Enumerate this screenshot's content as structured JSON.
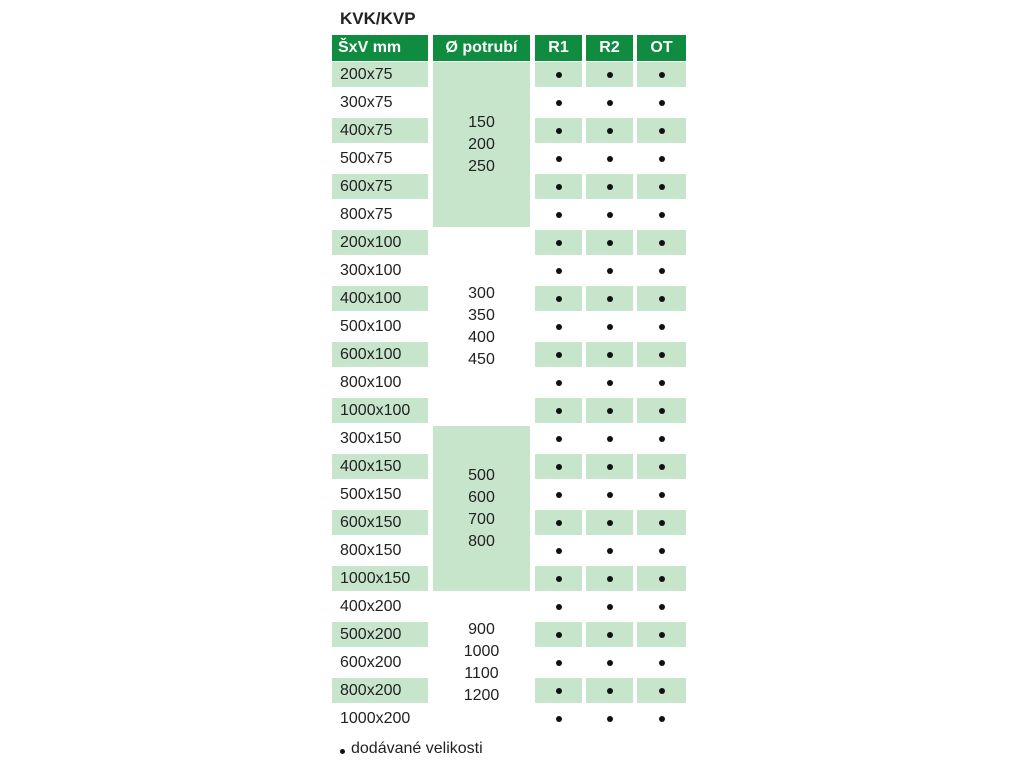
{
  "title": "KVK/KVP",
  "headers": [
    "ŠxV mm",
    "Ø potrubí",
    "R1",
    "R2",
    "OT"
  ],
  "rows": [
    {
      "size": "200x75",
      "r1": true,
      "r2": true,
      "ot": true
    },
    {
      "size": "300x75",
      "r1": true,
      "r2": true,
      "ot": true
    },
    {
      "size": "400x75",
      "r1": true,
      "r2": true,
      "ot": true
    },
    {
      "size": "500x75",
      "r1": true,
      "r2": true,
      "ot": true
    },
    {
      "size": "600x75",
      "r1": true,
      "r2": true,
      "ot": true
    },
    {
      "size": "800x75",
      "r1": true,
      "r2": true,
      "ot": true
    },
    {
      "size": "200x100",
      "r1": true,
      "r2": true,
      "ot": true
    },
    {
      "size": "300x100",
      "r1": true,
      "r2": true,
      "ot": true
    },
    {
      "size": "400x100",
      "r1": true,
      "r2": true,
      "ot": true
    },
    {
      "size": "500x100",
      "r1": true,
      "r2": true,
      "ot": true
    },
    {
      "size": "600x100",
      "r1": true,
      "r2": true,
      "ot": true
    },
    {
      "size": "800x100",
      "r1": true,
      "r2": true,
      "ot": true
    },
    {
      "size": "1000x100",
      "r1": true,
      "r2": true,
      "ot": true
    },
    {
      "size": "300x150",
      "r1": true,
      "r2": true,
      "ot": true
    },
    {
      "size": "400x150",
      "r1": true,
      "r2": true,
      "ot": true
    },
    {
      "size": "500x150",
      "r1": true,
      "r2": true,
      "ot": true
    },
    {
      "size": "600x150",
      "r1": true,
      "r2": true,
      "ot": true
    },
    {
      "size": "800x150",
      "r1": true,
      "r2": true,
      "ot": true
    },
    {
      "size": "1000x150",
      "r1": true,
      "r2": true,
      "ot": true
    },
    {
      "size": "400x200",
      "r1": true,
      "r2": true,
      "ot": true
    },
    {
      "size": "500x200",
      "r1": true,
      "r2": true,
      "ot": true
    },
    {
      "size": "600x200",
      "r1": true,
      "r2": true,
      "ot": true
    },
    {
      "size": "800x200",
      "r1": true,
      "r2": true,
      "ot": true
    },
    {
      "size": "1000x200",
      "r1": true,
      "r2": true,
      "ot": true
    }
  ],
  "pipe_groups": [
    {
      "first_row": 0,
      "last_row": 5,
      "values": [
        "150",
        "200",
        "250"
      ],
      "highlighted": true
    },
    {
      "first_row": 6,
      "last_row": 12,
      "values": [
        "300",
        "350",
        "400",
        "450"
      ],
      "highlighted": false
    },
    {
      "first_row": 13,
      "last_row": 18,
      "values": [
        "500",
        "600",
        "700",
        "800"
      ],
      "highlighted": true
    },
    {
      "first_row": 19,
      "last_row": 23,
      "values": [
        "900",
        "1000",
        "1100",
        "1200"
      ],
      "highlighted": false
    }
  ],
  "legend": "dodávané velikosti",
  "colors": {
    "header": "#0f8c3f",
    "highlight": "#c6e5cb"
  }
}
